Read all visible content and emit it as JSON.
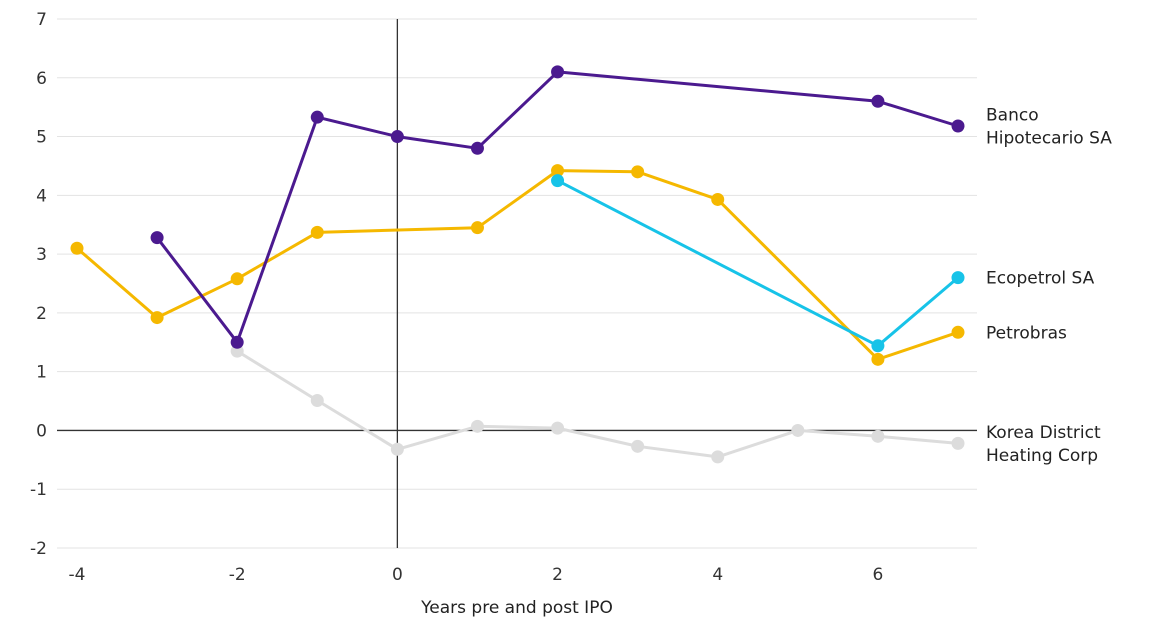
{
  "chart_data": {
    "type": "line",
    "xlabel": "Years pre and post IPO",
    "ylabel": "",
    "xlim": [
      -4,
      7
    ],
    "ylim": [
      -2,
      7
    ],
    "x_ticks": [
      "-4",
      "-2",
      "0",
      "2",
      "4",
      "6"
    ],
    "y_ticks": [
      "7",
      "6",
      "5",
      "4",
      "3",
      "2",
      "1",
      "0",
      "-1",
      "-2"
    ],
    "grid": true,
    "series": [
      {
        "name": "Banco Hipotecario SA",
        "label_lines": [
          "Banco",
          "Hipotecario SA"
        ],
        "color": "#4b1a8f",
        "points": [
          [
            -3,
            3.28
          ],
          [
            -2,
            1.5
          ],
          [
            -1,
            5.33
          ],
          [
            0,
            5.0
          ],
          [
            1,
            4.8
          ],
          [
            2,
            6.1
          ],
          [
            6,
            5.6
          ],
          [
            7,
            5.18
          ]
        ]
      },
      {
        "name": "Petrobras",
        "label_lines": [
          "Petrobras"
        ],
        "color": "#f5b800",
        "points": [
          [
            -4,
            3.1
          ],
          [
            -3,
            1.92
          ],
          [
            -2,
            2.58
          ],
          [
            -1,
            3.37
          ],
          [
            1,
            3.45
          ],
          [
            2,
            4.42
          ],
          [
            3,
            4.4
          ],
          [
            4,
            3.93
          ],
          [
            6,
            1.21
          ],
          [
            7,
            1.67
          ]
        ]
      },
      {
        "name": "Ecopetrol SA",
        "label_lines": [
          "Ecopetrol SA"
        ],
        "color": "#17c3e8",
        "points": [
          [
            2,
            4.25
          ],
          [
            6,
            1.44
          ],
          [
            7,
            2.6
          ]
        ]
      },
      {
        "name": "Korea District Heating Corp",
        "label_lines": [
          "Korea District",
          "Heating Corp"
        ],
        "color": "#dcdcdc",
        "points": [
          [
            -2,
            1.35
          ],
          [
            -1,
            0.51
          ],
          [
            0,
            -0.32
          ],
          [
            1,
            0.07
          ],
          [
            2,
            0.04
          ],
          [
            3,
            -0.27
          ],
          [
            4,
            -0.45
          ],
          [
            5,
            0.0
          ],
          [
            6,
            -0.1
          ],
          [
            7,
            -0.22
          ]
        ]
      }
    ]
  }
}
